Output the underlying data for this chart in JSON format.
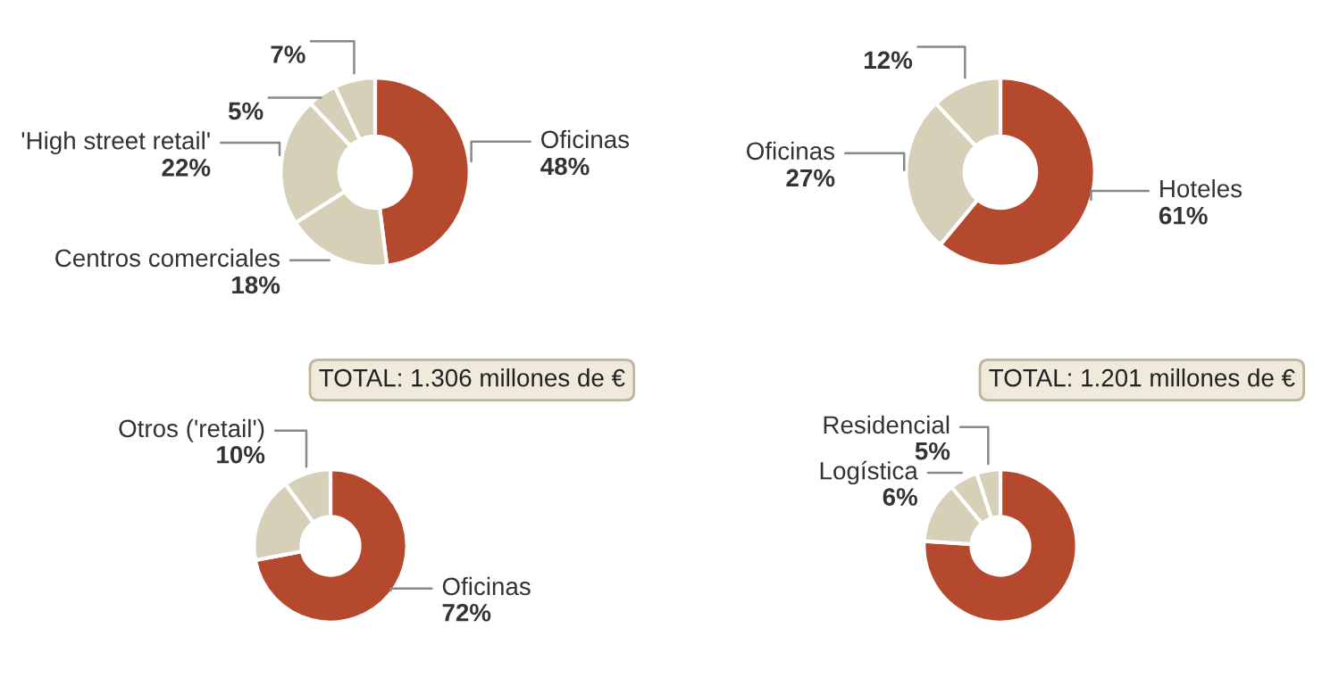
{
  "chart_data": [
    {
      "type": "donut",
      "categories": [
        "Oficinas",
        "Centros comerciales",
        "'High street retail'",
        null,
        null
      ],
      "values": [
        48,
        18,
        22,
        5,
        7
      ],
      "value_labels": [
        "48%",
        "18%",
        "22%",
        "5%",
        "7%"
      ],
      "colors": [
        "#b5492e",
        "#d6d0b8",
        "#d6d0b8",
        "#d6d0b8",
        "#d6d0b8"
      ]
    },
    {
      "type": "donut",
      "categories": [
        "Hoteles",
        "Oficinas",
        null
      ],
      "values": [
        61,
        27,
        12
      ],
      "value_labels": [
        "61%",
        "27%",
        "12%"
      ],
      "colors": [
        "#b5492e",
        "#d6d0b8",
        "#d6d0b8"
      ]
    },
    {
      "type": "donut",
      "subtitle": "TOTAL: 1.306 millones de €",
      "categories": [
        "Oficinas",
        null,
        "Otros ('retail')"
      ],
      "values": [
        72,
        18,
        10
      ],
      "value_labels": [
        "72%",
        null,
        "10%"
      ],
      "colors": [
        "#b5492e",
        "#d6d0b8",
        "#d6d0b8"
      ]
    },
    {
      "type": "donut",
      "subtitle": "TOTAL: 1.201 millones de €",
      "categories": [
        null,
        null,
        "Logística",
        "Residencial"
      ],
      "values": [
        76,
        13,
        6,
        5
      ],
      "value_labels": [
        null,
        null,
        "6%",
        "5%"
      ],
      "colors": [
        "#b5492e",
        "#d6d0b8",
        "#d6d0b8",
        "#d6d0b8"
      ]
    }
  ]
}
